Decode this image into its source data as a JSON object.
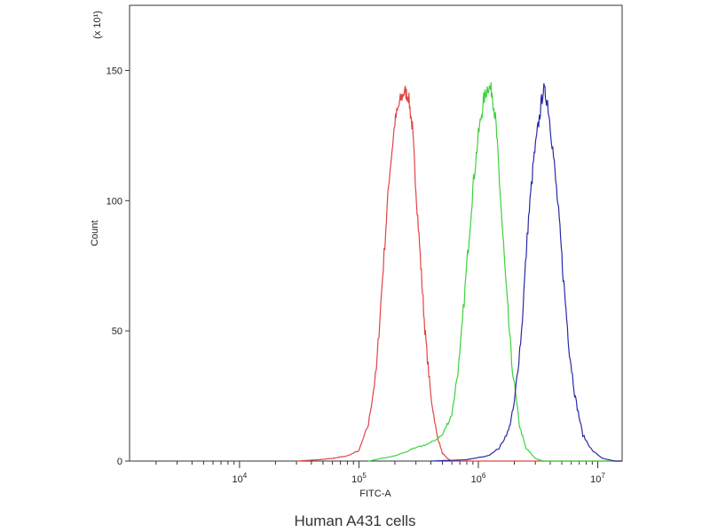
{
  "chart_data": {
    "type": "line",
    "title": "",
    "xlabel": "FITC-A",
    "ylabel": "Count",
    "y_multiplier_label": "(x 10¹)",
    "caption": "Human A431 cells",
    "x_scale": "log",
    "xlim": [
      1200,
      16000000
    ],
    "ylim": [
      0,
      175
    ],
    "grid": false,
    "x_ticks": [
      10000,
      100000,
      1000000,
      10000000
    ],
    "x_tick_labels": [
      {
        "base": "10",
        "exp": "4"
      },
      {
        "base": "10",
        "exp": "5"
      },
      {
        "base": "10",
        "exp": "6"
      },
      {
        "base": "10",
        "exp": "7"
      }
    ],
    "y_ticks": [
      0,
      50,
      100,
      150
    ],
    "y_tick_labels": [
      "0",
      "50",
      "100",
      "150"
    ],
    "series": [
      {
        "color": "#e04545",
        "x": [
          30000,
          45000,
          60000,
          80000,
          100000,
          120000,
          140000,
          160000,
          180000,
          200000,
          220000,
          240000,
          260000,
          280000,
          300000,
          330000,
          360000,
          400000,
          450000,
          500000,
          550000,
          600000
        ],
        "y": [
          0,
          0.5,
          1,
          2,
          4,
          14,
          35,
          75,
          110,
          130,
          138,
          142,
          140,
          128,
          105,
          75,
          48,
          25,
          10,
          3,
          1,
          0
        ]
      },
      {
        "color": "#3ed13e",
        "x": [
          120000,
          200000,
          300000,
          400000,
          500000,
          600000,
          700000,
          800000,
          900000,
          1000000,
          1100000,
          1200000,
          1300000,
          1400000,
          1500000,
          1700000,
          1900000,
          2200000,
          2500000,
          3000000,
          3500000
        ],
        "y": [
          0,
          2,
          5,
          7,
          10,
          18,
          40,
          75,
          105,
          125,
          138,
          144,
          142,
          130,
          108,
          68,
          38,
          14,
          5,
          1,
          0
        ]
      },
      {
        "color": "#2a2aa8",
        "x": [
          400000,
          800000,
          1200000,
          1500000,
          1800000,
          2000000,
          2300000,
          2600000,
          2900000,
          3200000,
          3500000,
          3800000,
          4200000,
          4700000,
          5200000,
          5800000,
          6500000,
          7500000,
          9000000,
          11000000,
          14000000
        ],
        "y": [
          0,
          0.5,
          2,
          5,
          12,
          22,
          50,
          90,
          115,
          130,
          143,
          138,
          120,
          95,
          68,
          42,
          24,
          10,
          4,
          1,
          0
        ]
      }
    ]
  }
}
